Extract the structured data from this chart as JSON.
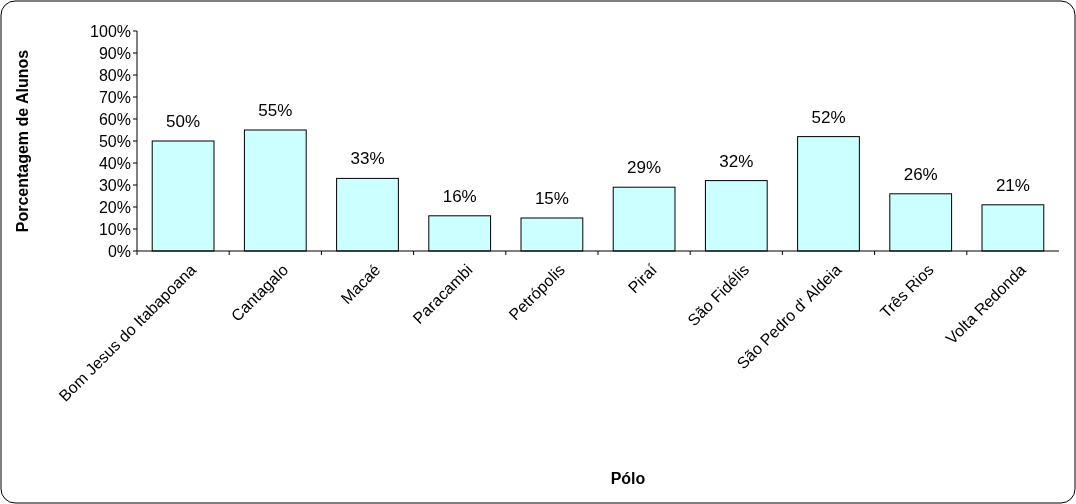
{
  "chart_data": {
    "type": "bar",
    "xlabel": "Pólo",
    "ylabel": "Porcentagem de Alunos",
    "categories": [
      "Bom Jesus do Itabapoana",
      "Cantagalo",
      "Macaé",
      "Paracambi",
      "Petrópolis",
      "Piraí",
      "São Fidélis",
      "São Pedro d' Aldeia",
      "Três Rios",
      "Volta Redonda"
    ],
    "values": [
      50,
      55,
      33,
      16,
      15,
      29,
      32,
      52,
      26,
      21
    ],
    "value_labels": [
      "50%",
      "55%",
      "33%",
      "16%",
      "15%",
      "29%",
      "32%",
      "52%",
      "26%",
      "21%"
    ],
    "color": "#ccffff",
    "ylim": [
      0,
      100
    ],
    "yticks": [
      {
        "value": 0,
        "label": "0%"
      },
      {
        "value": 10,
        "label": "10%"
      },
      {
        "value": 20,
        "label": "20%"
      },
      {
        "value": 30,
        "label": "30%"
      },
      {
        "value": 40,
        "label": "40%"
      },
      {
        "value": 50,
        "label": "50%"
      },
      {
        "value": 60,
        "label": "60%"
      },
      {
        "value": 70,
        "label": "70%"
      },
      {
        "value": 80,
        "label": "80%"
      },
      {
        "value": 90,
        "label": "90%"
      },
      {
        "value": 100,
        "label": "100%"
      }
    ],
    "grid": false
  }
}
